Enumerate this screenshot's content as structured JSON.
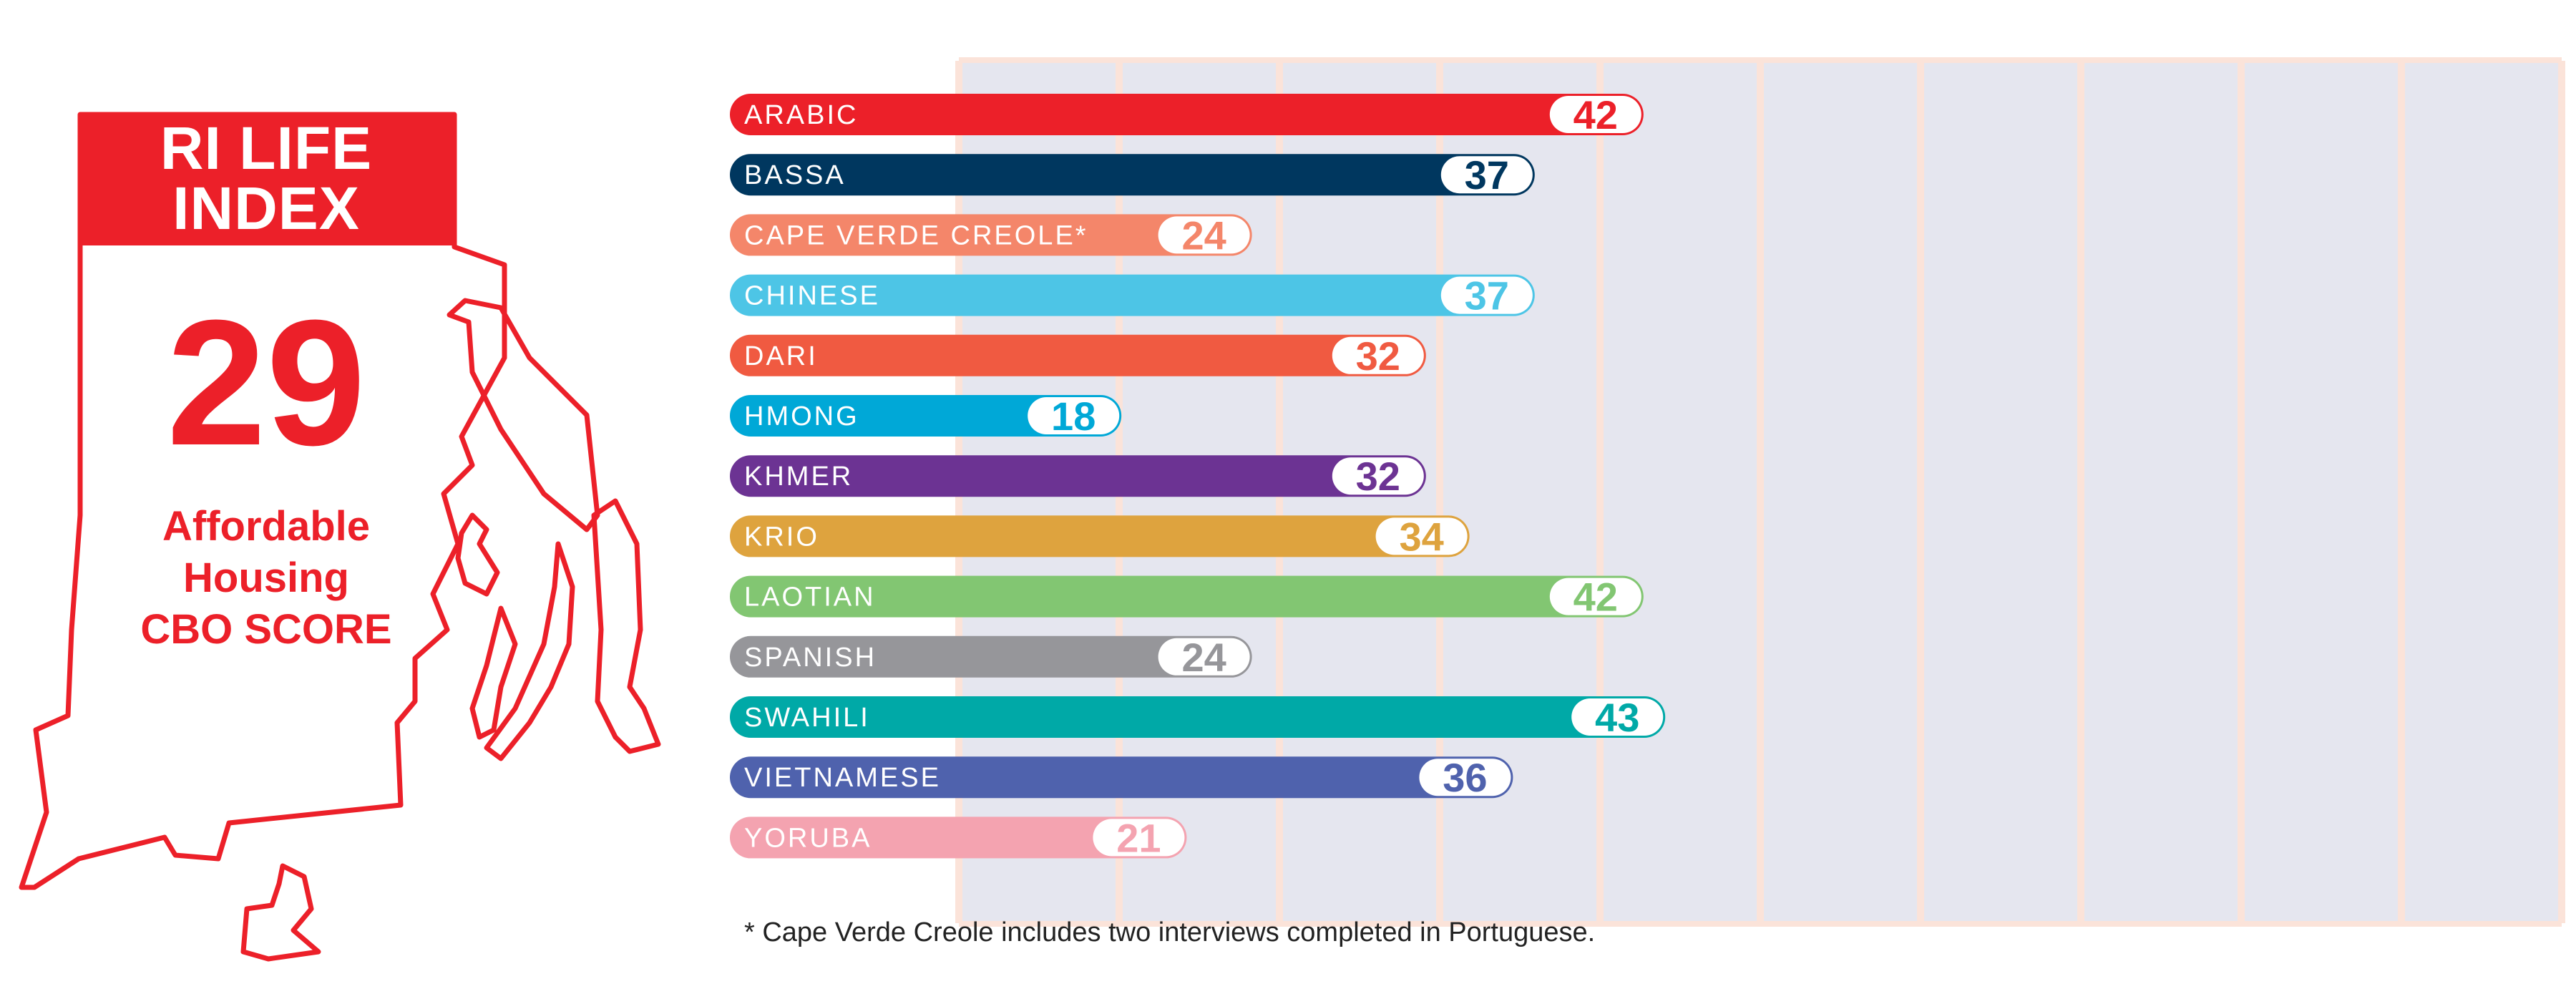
{
  "panel": {
    "title_line1": "RI LIFE",
    "title_line2": "INDEX",
    "score": "29",
    "label_line1": "Affordable",
    "label_line2": "Housing",
    "label_line3": "CBO SCORE"
  },
  "colors": {
    "accent": "#ec2029",
    "grid_fill": "#e5e6ef",
    "grid_border": "#fbe3d9"
  },
  "footnote": "* Cape Verde Creole includes two interviews completed in Portuguese.",
  "chart_data": {
    "type": "bar",
    "orientation": "horizontal",
    "xlim": [
      0,
      100
    ],
    "grid": true,
    "categories": [
      "ARABIC",
      "BASSA",
      "CAPE VERDE CREOLE*",
      "CHINESE",
      "DARI",
      "HMONG",
      "KHMER",
      "KRIO",
      "LAOTIAN",
      "SPANISH",
      "SWAHILI",
      "VIETNAMESE",
      "YORUBA"
    ],
    "values": [
      42,
      37,
      24,
      37,
      32,
      18,
      32,
      34,
      42,
      24,
      43,
      36,
      21
    ],
    "colors": [
      "#ec2029",
      "#00375f",
      "#f4866a",
      "#4dc5e6",
      "#f05a41",
      "#00a8d7",
      "#6c3393",
      "#dea33e",
      "#82c672",
      "#96969a",
      "#00a9a7",
      "#4f62ad",
      "#f4a3b0"
    ]
  }
}
